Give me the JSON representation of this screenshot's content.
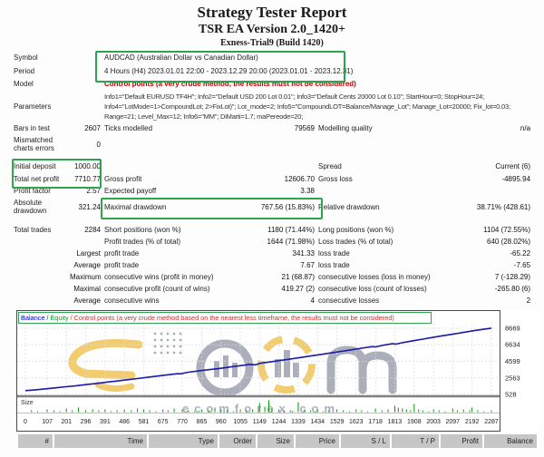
{
  "header": {
    "title": "Strategy Tester Report",
    "subtitle": "TSR EA Version 2.0_1420+",
    "build": "Exness-Trial9 (Build 1420)"
  },
  "report": {
    "rows": [
      {
        "l1": "Symbol",
        "span": "AUDCAD (Australian Dollar vs Canadian Dollar)",
        "h": "h15"
      },
      {
        "l1": "Period",
        "span": "4 Hours (H4) 2023.01.01 22:00 - 2023.12.29 20:00 (2023.01.01 - 2023.12.31)",
        "h": "h15"
      },
      {
        "l1": "Model",
        "span": "Control points (a very crude method, the results must not be considered)",
        "red": true,
        "h": "h13"
      },
      {
        "l1": "Parameters",
        "spanLines": [
          "Info1=\"Default EURUSD TF4H\"; Info2=\"Default USD 200 Lot 0.01\"; Info3=\"Default Cents 20000 Lot 0.10\"; StartHour=0; StopHour=24;",
          "Info4=\"LotMode=1>CompoundLot; 2>FixLot)\"; Lot_mode=2; Info5=\"CompoundLOT=Balance/Manage_Lot\"; Manage_Lot=20000; Fix_lot=0.03;",
          "Range=21; Level_Max=12; Info6=\"MM\"; DiMarti=1.7; maPereode=20;"
        ],
        "h": "h36"
      },
      {
        "l1": "Bars in test",
        "v1": "2607",
        "l2": "Ticks modelled",
        "v2": "79569",
        "l3": "Modelling quality",
        "v3": "n/a",
        "h": "h13"
      },
      {
        "l1": "Mismatched charts errors",
        "v1": "0",
        "wrap1": true,
        "h": "h22"
      },
      {
        "gap": "g6"
      },
      {
        "l1": "Initial deposit",
        "v1": "1000.00",
        "l3": "Spread",
        "v3": "Current (6)",
        "h": "h14"
      },
      {
        "l1": "Total net profit",
        "v1": "7710.77",
        "l2": "Gross profit",
        "v2": "12606.70",
        "l3": "Gross loss",
        "v3": "-4895.94",
        "h": "h14"
      },
      {
        "l1": "Profit factor",
        "v1": "2.57",
        "l2": "Expected payoff",
        "v2": "3.38",
        "h": "h13"
      },
      {
        "l1": "Absolute drawdown",
        "v1": "321.24",
        "l2": "Maximal drawdown",
        "v2": "767.56 (15.83%)",
        "l3": "Relative drawdown",
        "v3": "38.71% (428.61)",
        "wrap1": true,
        "h": "h22"
      },
      {
        "gap": "g8"
      },
      {
        "l1": "Total trades",
        "v1": "2284",
        "l2": "Short positions (won %)",
        "v2": "1180 (71.44%)",
        "l3": "Long positions (won %)",
        "v3": "1104 (72.55%)",
        "h": "h13"
      },
      {
        "l2": "Profit trades (% of total)",
        "v2": "1644 (71.98%)",
        "l3": "Loss trades (% of total)",
        "v3": "640 (28.02%)",
        "h": "h13"
      },
      {
        "v1": "Largest",
        "l2": "profit trade",
        "v2": "341.33",
        "l3": "loss trade",
        "v3": "-65.22",
        "h": "h13"
      },
      {
        "v1": "Average",
        "l2": "profit trade",
        "v2": "7.67",
        "l3": "loss trade",
        "v3": "-7.65",
        "h": "h13"
      },
      {
        "v1": "Maximum",
        "l2": "consecutive wins (profit in money)",
        "v2": "21 (68.87)",
        "l3": "consecutive losses (loss in money)",
        "v3": "7 (-128.29)",
        "h": "h13"
      },
      {
        "v1": "Maximal",
        "l2": "consecutive profit (count of wins)",
        "v2": "419.27 (2)",
        "l3": "consecutive loss (count of losses)",
        "v3": "-265.80 (6)",
        "h": "h13"
      },
      {
        "v1": "Average",
        "l2": "consecutive wins",
        "v2": "4",
        "l3": "consecutive losses",
        "v3": "2",
        "h": "h13"
      }
    ]
  },
  "chart_data": {
    "type": "line",
    "legend": {
      "balance": "Balance",
      "sep": " / ",
      "equity": "Equity",
      "note": " / Control points (a very crude method based on the nearest less timeframe, the results must not be considered)"
    },
    "line_color": "#1a1aa6",
    "bar_color": "#009900",
    "grid": true,
    "x_range": [
      0,
      2287
    ],
    "y_ticks": [
      8669,
      6634,
      4599,
      2563,
      528
    ],
    "x_ticks": [
      0,
      107,
      201,
      296,
      391,
      486,
      581,
      675,
      770,
      865,
      960,
      1055,
      1149,
      1244,
      1339,
      1434,
      1529,
      1623,
      1718,
      1813,
      1908,
      2003,
      2097,
      2192,
      2287
    ],
    "series": [
      {
        "name": "Balance",
        "points": [
          [
            0,
            1000
          ],
          [
            50,
            1100
          ],
          [
            100,
            1220
          ],
          [
            150,
            1340
          ],
          [
            200,
            1480
          ],
          [
            250,
            1600
          ],
          [
            300,
            1740
          ],
          [
            350,
            1880
          ],
          [
            400,
            2040
          ],
          [
            450,
            2180
          ],
          [
            500,
            2330
          ],
          [
            550,
            2480
          ],
          [
            600,
            2640
          ],
          [
            650,
            2790
          ],
          [
            700,
            2950
          ],
          [
            750,
            3080
          ],
          [
            760,
            3060
          ],
          [
            800,
            3260
          ],
          [
            850,
            3420
          ],
          [
            900,
            3570
          ],
          [
            950,
            3720
          ],
          [
            1000,
            3890
          ],
          [
            1050,
            4050
          ],
          [
            1100,
            4220
          ],
          [
            1130,
            4180
          ],
          [
            1150,
            4350
          ],
          [
            1200,
            4520
          ],
          [
            1250,
            4700
          ],
          [
            1300,
            4890
          ],
          [
            1350,
            5070
          ],
          [
            1400,
            5260
          ],
          [
            1450,
            5450
          ],
          [
            1500,
            5640
          ],
          [
            1550,
            5830
          ],
          [
            1600,
            6020
          ],
          [
            1650,
            6210
          ],
          [
            1700,
            6400
          ],
          [
            1720,
            6380
          ],
          [
            1750,
            6550
          ],
          [
            1800,
            6760
          ],
          [
            1820,
            6720
          ],
          [
            1850,
            6900
          ],
          [
            1900,
            7120
          ],
          [
            1950,
            7330
          ],
          [
            2000,
            7540
          ],
          [
            2050,
            7750
          ],
          [
            2100,
            7960
          ],
          [
            2150,
            8160
          ],
          [
            2200,
            8370
          ],
          [
            2250,
            8550
          ],
          [
            2287,
            8680
          ]
        ]
      }
    ],
    "size_panel": {
      "label": "Size",
      "bars": [
        [
          30,
          2
        ],
        [
          60,
          1
        ],
        [
          107,
          3
        ],
        [
          140,
          2
        ],
        [
          170,
          1
        ],
        [
          201,
          4
        ],
        [
          230,
          2
        ],
        [
          260,
          5
        ],
        [
          296,
          2
        ],
        [
          330,
          3
        ],
        [
          360,
          2
        ],
        [
          391,
          3
        ],
        [
          420,
          1
        ],
        [
          450,
          2
        ],
        [
          486,
          3
        ],
        [
          520,
          2
        ],
        [
          550,
          4
        ],
        [
          581,
          3
        ],
        [
          610,
          2
        ],
        [
          640,
          1
        ],
        [
          675,
          3
        ],
        [
          700,
          2
        ],
        [
          730,
          4
        ],
        [
          770,
          3
        ],
        [
          800,
          2
        ],
        [
          830,
          1
        ],
        [
          865,
          3
        ],
        [
          900,
          2
        ],
        [
          930,
          5
        ],
        [
          960,
          3
        ],
        [
          990,
          2
        ],
        [
          1020,
          1
        ],
        [
          1055,
          3
        ],
        [
          1085,
          2
        ],
        [
          1115,
          3
        ],
        [
          1149,
          10
        ],
        [
          1175,
          6
        ],
        [
          1195,
          13
        ],
        [
          1210,
          4
        ],
        [
          1244,
          3
        ],
        [
          1270,
          2
        ],
        [
          1300,
          2
        ],
        [
          1339,
          11
        ],
        [
          1370,
          3
        ],
        [
          1400,
          2
        ],
        [
          1434,
          2
        ],
        [
          1460,
          1
        ],
        [
          1490,
          2
        ],
        [
          1529,
          3
        ],
        [
          1560,
          2
        ],
        [
          1590,
          1
        ],
        [
          1623,
          3
        ],
        [
          1650,
          2
        ],
        [
          1680,
          1
        ],
        [
          1718,
          4
        ],
        [
          1750,
          2
        ],
        [
          1780,
          3
        ],
        [
          1813,
          7
        ],
        [
          1830,
          5
        ],
        [
          1850,
          4
        ],
        [
          1870,
          3
        ],
        [
          1890,
          2
        ],
        [
          1908,
          9
        ],
        [
          1930,
          3
        ],
        [
          1950,
          2
        ],
        [
          1980,
          1
        ],
        [
          2003,
          3
        ],
        [
          2030,
          2
        ],
        [
          2060,
          1
        ],
        [
          2097,
          4
        ],
        [
          2120,
          2
        ],
        [
          2150,
          3
        ],
        [
          2180,
          2
        ],
        [
          2192,
          5
        ],
        [
          2220,
          2
        ],
        [
          2250,
          1
        ],
        [
          2287,
          2
        ]
      ]
    },
    "watermark": {
      "logo": "eCom",
      "site": "ecomforex.com"
    }
  },
  "footer": {
    "columns": [
      "#",
      "Time",
      "Type",
      "Order",
      "Size",
      "Price",
      "S / L",
      "T / P",
      "Profit",
      "Balance"
    ]
  }
}
